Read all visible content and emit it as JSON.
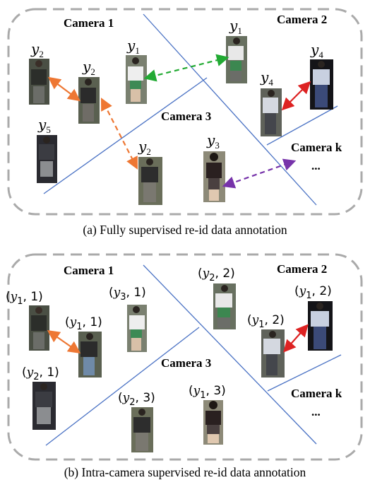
{
  "panel_a": {
    "caption": "(a) Fully supervised re-id data annotation",
    "cameras": {
      "cam1": "Camera 1",
      "cam2": "Camera 2",
      "cam3": "Camera 3",
      "camk": "Camera k",
      "ellipsis": "..."
    },
    "labels": {
      "y2_left": "y2",
      "y2_mid": "y2",
      "y1_mid": "y1",
      "y5": "y5",
      "y1_top": "y1",
      "y4_a": "y4",
      "y4_b": "y4",
      "y2_bottom": "y2",
      "y3": "y3"
    }
  },
  "panel_b": {
    "caption": "(b) Intra-camera supervised re-id data annotation",
    "cameras": {
      "cam1": "Camera 1",
      "cam2": "Camera 2",
      "cam3": "Camera 3",
      "camk": "Camera k",
      "ellipsis": "..."
    },
    "labels": {
      "a": "(y1, 1)",
      "b": "(y3, 1)",
      "c": "(y1, 1)",
      "d": "(y2, 1)",
      "e": "(y2, 2)",
      "f": "(y1, 2)",
      "g": "(y1, 2)",
      "h": "(y2, 3)",
      "i": "(y1, 3)"
    }
  },
  "colors": {
    "green": "#22aa33",
    "orange": "#ee7733",
    "red": "#dd2222",
    "purple": "#7733aa",
    "line": "#4a72c4",
    "border": "#aaaaaa"
  }
}
